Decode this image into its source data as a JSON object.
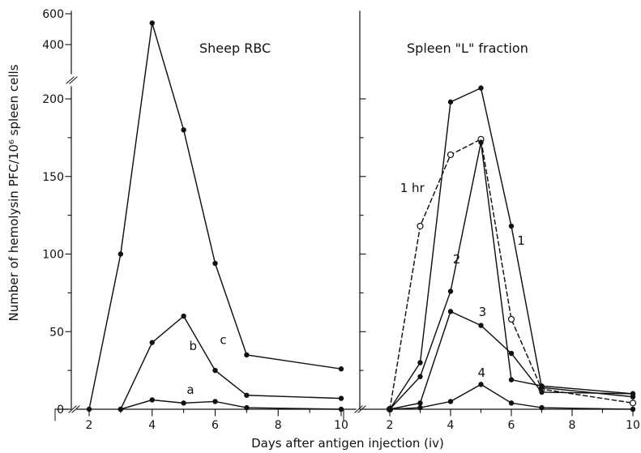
{
  "chart_data": [
    {
      "type": "line",
      "title": "Sheep RBC",
      "xlabel": "Days after antigen injection (iv)",
      "ylabel": "Number of hemolysin PFC/10⁶ spleen cells",
      "x_ticks": [
        2,
        4,
        6,
        8,
        10
      ],
      "y_ticks": [
        0,
        50,
        100,
        150,
        200
      ],
      "y_break_ticks": [
        400,
        600
      ],
      "axis_break": true,
      "grid": false,
      "series": [
        {
          "name": "c",
          "style": "solid",
          "marker": "filled",
          "points": [
            [
              2,
              0
            ],
            [
              3,
              100
            ],
            [
              4,
              540
            ],
            [
              5,
              180
            ],
            [
              6,
              94
            ],
            [
              7,
              35
            ],
            [
              10,
              26
            ]
          ]
        },
        {
          "name": "b",
          "style": "solid",
          "marker": "filled",
          "points": [
            [
              3,
              0
            ],
            [
              4,
              43
            ],
            [
              5,
              60
            ],
            [
              6,
              25
            ],
            [
              7,
              9
            ],
            [
              10,
              7
            ]
          ]
        },
        {
          "name": "a",
          "style": "solid",
          "marker": "filled",
          "points": [
            [
              3,
              0
            ],
            [
              4,
              6
            ],
            [
              5,
              4
            ],
            [
              6,
              5
            ],
            [
              7,
              1
            ],
            [
              10,
              0
            ]
          ]
        }
      ]
    },
    {
      "type": "line",
      "title": "Spleen \"L\" fraction",
      "xlabel": "Days after antigen injection (iv)",
      "x_ticks": [
        2,
        4,
        6,
        8,
        10
      ],
      "y_ticks": [
        0,
        50,
        100,
        150,
        200
      ],
      "axis_break": false,
      "grid": false,
      "series": [
        {
          "name": "1 hr",
          "style": "dashed",
          "marker": "open",
          "points": [
            [
              2,
              0
            ],
            [
              3,
              118
            ],
            [
              4,
              164
            ],
            [
              5,
              174
            ],
            [
              6,
              58
            ],
            [
              7,
              13
            ],
            [
              10,
              4
            ]
          ]
        },
        {
          "name": "1",
          "style": "solid",
          "marker": "filled",
          "points": [
            [
              2,
              0
            ],
            [
              3,
              30
            ],
            [
              4,
              198
            ],
            [
              5,
              207
            ],
            [
              6,
              118
            ],
            [
              7,
              14
            ],
            [
              10,
              8
            ]
          ]
        },
        {
          "name": "2",
          "style": "solid",
          "marker": "filled",
          "points": [
            [
              2,
              0
            ],
            [
              3,
              21
            ],
            [
              4,
              76
            ],
            [
              5,
              172
            ],
            [
              6,
              19
            ],
            [
              7,
              15
            ],
            [
              10,
              10
            ]
          ]
        },
        {
          "name": "3",
          "style": "solid",
          "marker": "filled",
          "points": [
            [
              2,
              0
            ],
            [
              3,
              4
            ],
            [
              4,
              63
            ],
            [
              5,
              54
            ],
            [
              6,
              36
            ],
            [
              7,
              11
            ],
            [
              10,
              10
            ]
          ]
        },
        {
          "name": "4",
          "style": "solid",
          "marker": "filled",
          "points": [
            [
              2,
              0
            ],
            [
              3,
              1
            ],
            [
              4,
              5
            ],
            [
              5,
              16
            ],
            [
              6,
              4
            ],
            [
              7,
              1
            ],
            [
              10,
              0
            ]
          ]
        }
      ]
    }
  ],
  "colors": {
    "ink": "#111111",
    "background": "#ffffff"
  }
}
